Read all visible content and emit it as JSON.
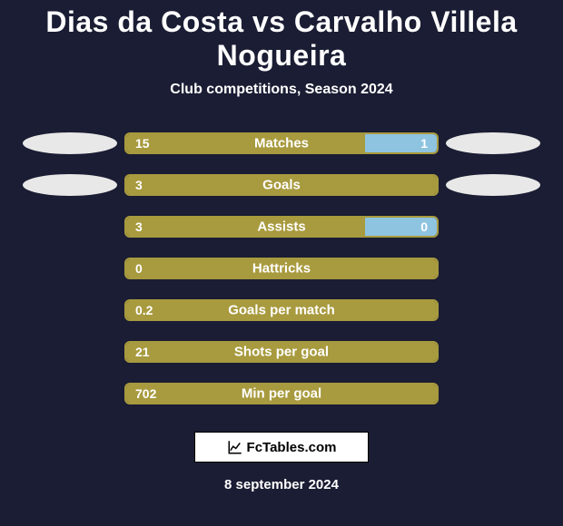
{
  "title": "Dias da Costa vs Carvalho Villela Nogueira",
  "subtitle": "Club competitions, Season 2024",
  "colors": {
    "background": "#1a1d33",
    "border": "#a89a3e",
    "player1_fill": "#a89a3e",
    "player2_fill": "#8fc4e0",
    "text": "#ffffff",
    "avatar_bg": "#e8e8e8"
  },
  "rows": [
    {
      "name": "matches",
      "label": "Matches",
      "left_value": "15",
      "right_value": "1",
      "left_pct": 77,
      "right_pct": 23,
      "show_left_avatar": true,
      "show_right_avatar": true,
      "show_right_value": true,
      "right_fill_visible": true
    },
    {
      "name": "goals",
      "label": "Goals",
      "left_value": "3",
      "right_value": "",
      "left_pct": 100,
      "right_pct": 0,
      "show_left_avatar": true,
      "show_right_avatar": true,
      "show_right_value": false,
      "right_fill_visible": false
    },
    {
      "name": "assists",
      "label": "Assists",
      "left_value": "3",
      "right_value": "0",
      "left_pct": 77,
      "right_pct": 23,
      "show_left_avatar": false,
      "show_right_avatar": false,
      "show_right_value": true,
      "right_fill_visible": true
    },
    {
      "name": "hattricks",
      "label": "Hattricks",
      "left_value": "0",
      "right_value": "",
      "left_pct": 100,
      "right_pct": 0,
      "show_left_avatar": false,
      "show_right_avatar": false,
      "show_right_value": false,
      "right_fill_visible": false
    },
    {
      "name": "goals-per-match",
      "label": "Goals per match",
      "left_value": "0.2",
      "right_value": "",
      "left_pct": 100,
      "right_pct": 0,
      "show_left_avatar": false,
      "show_right_avatar": false,
      "show_right_value": false,
      "right_fill_visible": false
    },
    {
      "name": "shots-per-goal",
      "label": "Shots per goal",
      "left_value": "21",
      "right_value": "",
      "left_pct": 100,
      "right_pct": 0,
      "show_left_avatar": false,
      "show_right_avatar": false,
      "show_right_value": false,
      "right_fill_visible": false
    },
    {
      "name": "min-per-goal",
      "label": "Min per goal",
      "left_value": "702",
      "right_value": "",
      "left_pct": 100,
      "right_pct": 0,
      "show_left_avatar": false,
      "show_right_avatar": false,
      "show_right_value": false,
      "right_fill_visible": false
    }
  ],
  "footer": {
    "brand": "FcTables.com",
    "date": "8 september 2024"
  }
}
